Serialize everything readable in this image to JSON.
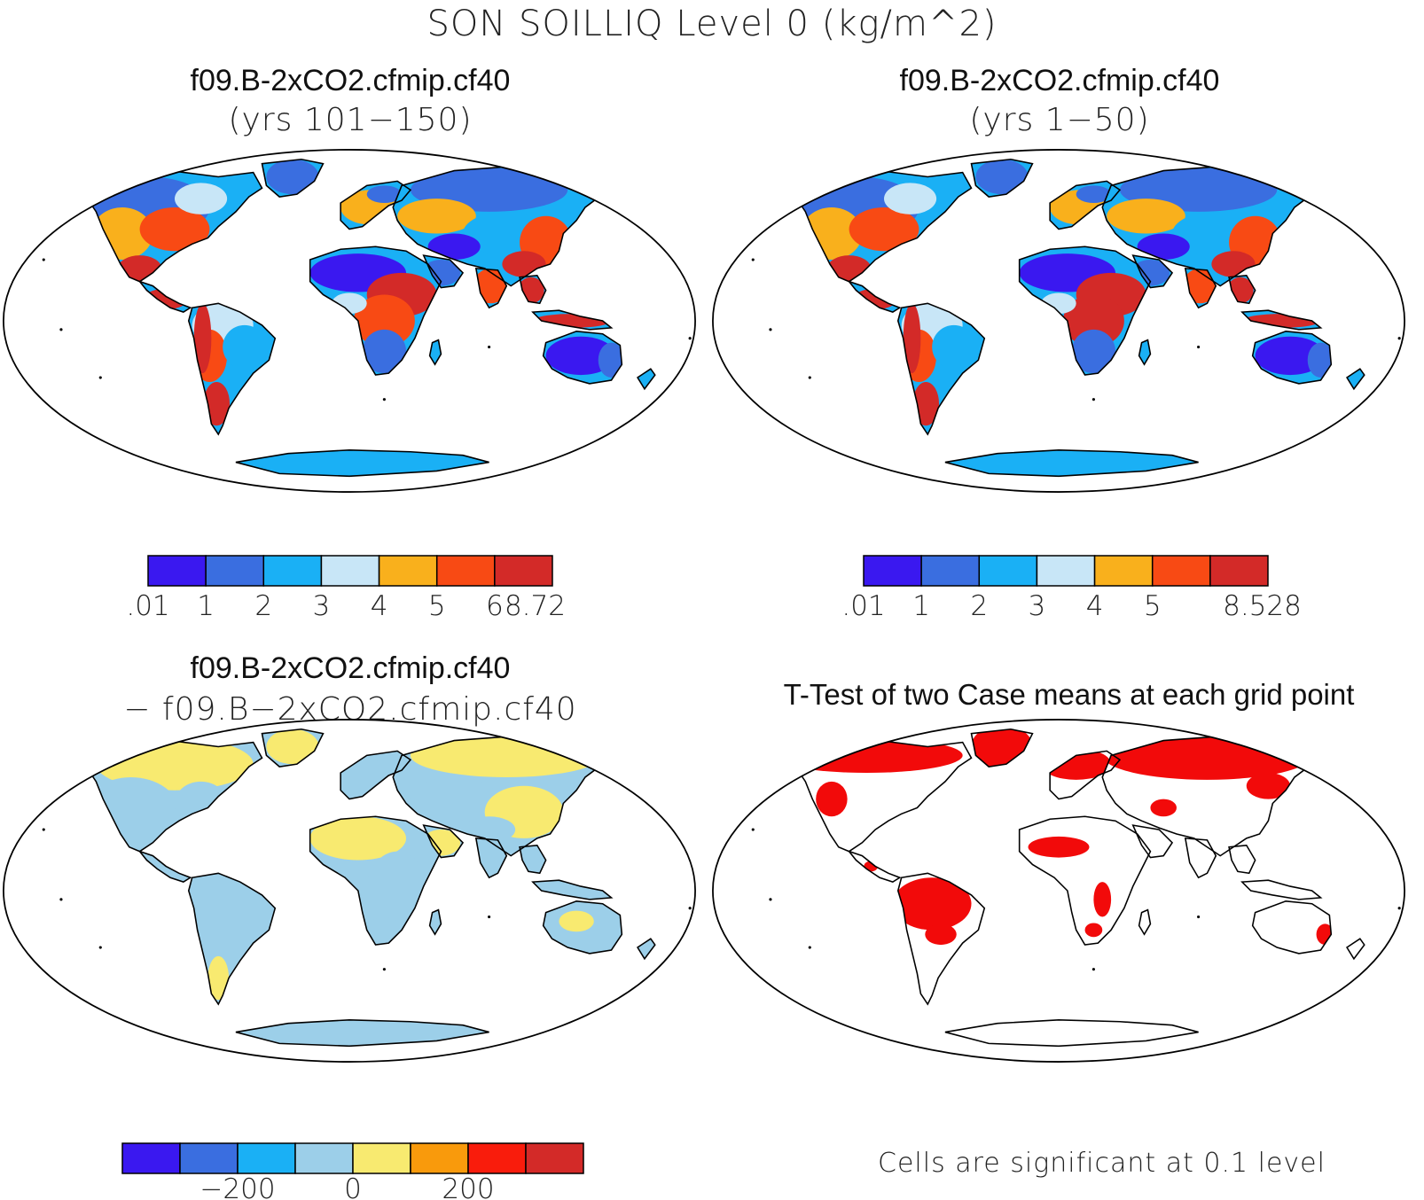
{
  "figure": {
    "title": "SON SOILLIQ Level 0 (kg/m^2)"
  },
  "panels": [
    {
      "title": "f09.B-2xCO2.cfmip.cf40",
      "subtitle": "(yrs 101−150)"
    },
    {
      "title": "f09.B-2xCO2.cfmip.cf40",
      "subtitle": "(yrs 1−50)"
    },
    {
      "title": "f09.B-2xCO2.cfmip.cf40",
      "subtitle": "− f09.B−2xCO2.cfmip.cf40"
    },
    {
      "title": "T-Test of two Case means at each grid point",
      "subtitle": ""
    }
  ],
  "colorbars": [
    {
      "colors": [
        "#3a18f0",
        "#3a6ee0",
        "#1ab0f5",
        "#c8e6f7",
        "#f9b01c",
        "#f84a14",
        "#d32a28"
      ],
      "labels": [
        ".01",
        "1",
        "2",
        "3",
        "4",
        "5",
        "6",
        "8.72"
      ],
      "label_ranks": [
        1,
        2,
        3,
        4,
        5,
        6,
        7,
        7.7
      ]
    },
    {
      "colors": [
        "#3a18f0",
        "#3a6ee0",
        "#1ab0f5",
        "#c8e6f7",
        "#f9b01c",
        "#f84a14",
        "#d32a28"
      ],
      "labels": [
        ".01",
        "1",
        "2",
        "3",
        "4",
        "5",
        "8.528"
      ],
      "label_ranks": [
        1,
        2,
        3,
        4,
        5,
        6,
        7.9
      ]
    },
    {
      "colors": [
        "#3a18f0",
        "#3a6ee0",
        "#1ab0f5",
        "#9ccfe9",
        "#f8ea70",
        "#f99a0c",
        "#f91c0c",
        "#d32a28"
      ],
      "labels": [
        "−200",
        "0",
        "200"
      ],
      "label_ranks": [
        2,
        4,
        6
      ]
    }
  ],
  "significance_note": "Cells are significant at 0.1 level",
  "colors": {
    "sig_red": "#f20a0a",
    "coast": "#000000",
    "ocean": "#ffffff"
  }
}
